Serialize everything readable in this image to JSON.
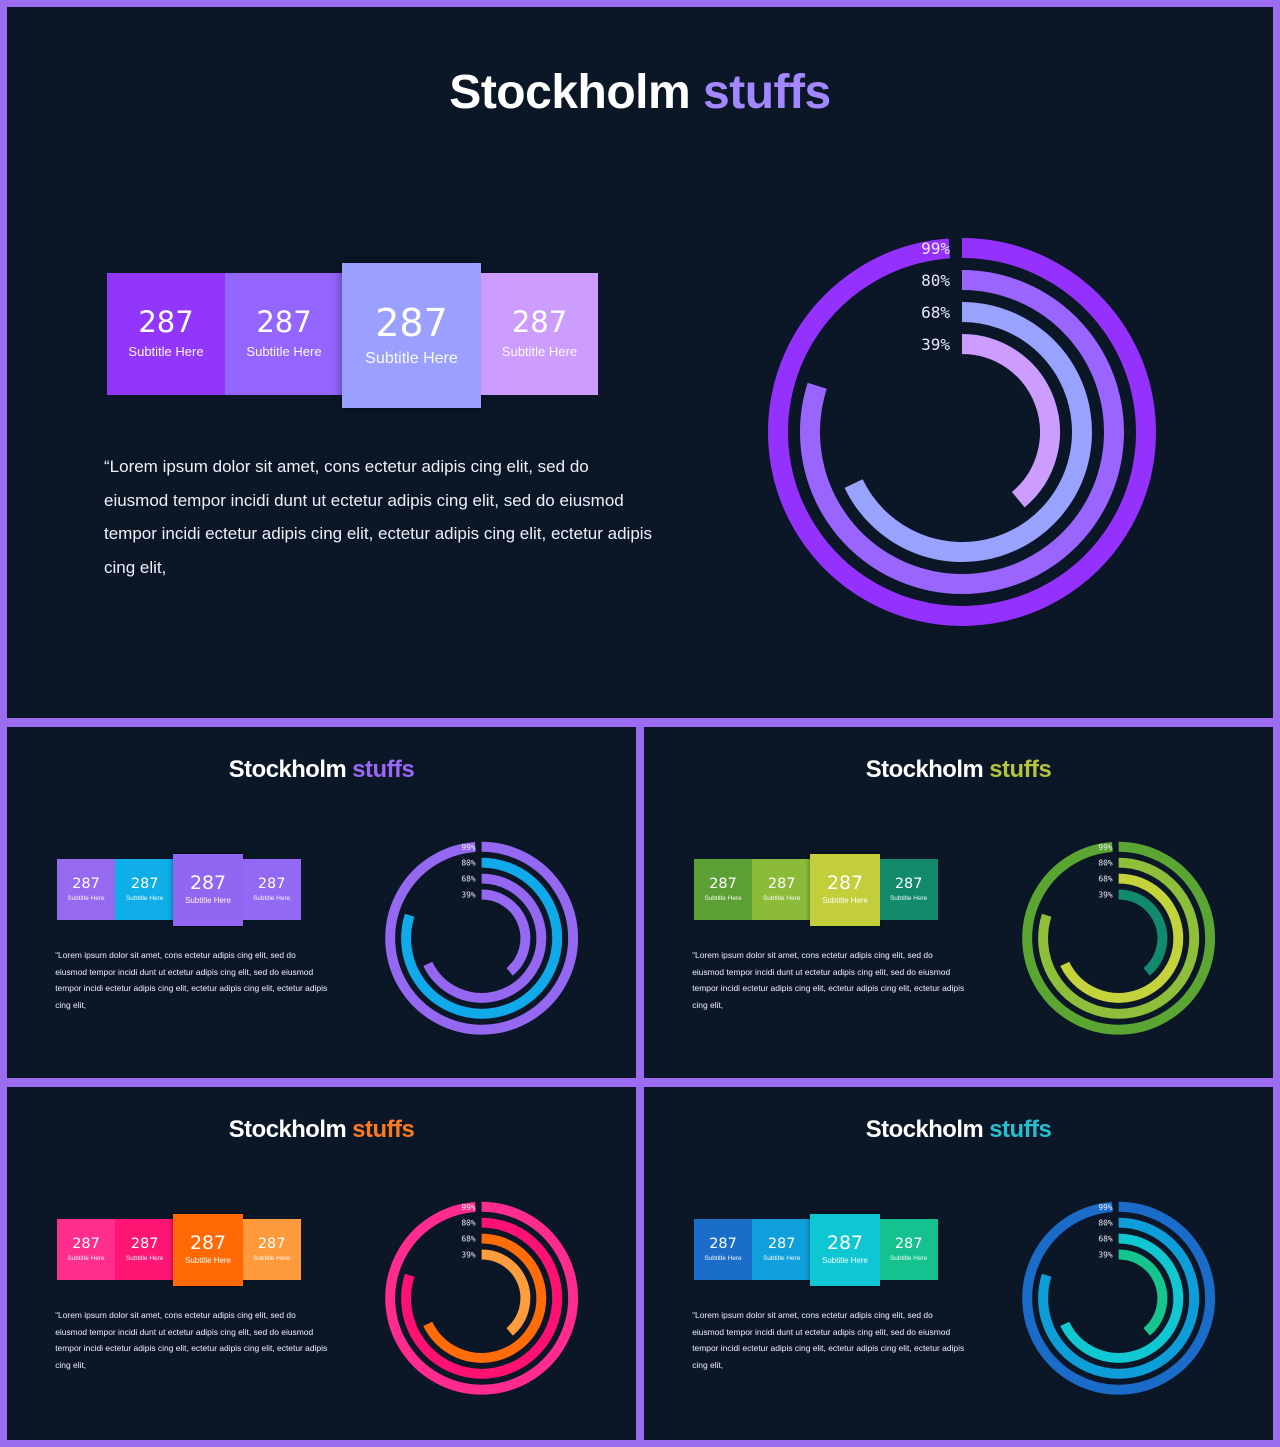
{
  "title": {
    "main": "Stockholm",
    "accent": "stuffs"
  },
  "stats": [
    {
      "value": "287",
      "subtitle": "Subtitle Here"
    },
    {
      "value": "287",
      "subtitle": "Subtitle Here"
    },
    {
      "value": "287",
      "subtitle": "Subtitle Here"
    },
    {
      "value": "287",
      "subtitle": "Subtitle Here"
    }
  ],
  "body_text": "“Lorem ipsum dolor sit amet, cons ectetur adipis cing elit, sed do eiusmod tempor incidi dunt ut ectetur adipis cing elit, sed do eiusmod tempor incidi ectetur adipis cing elit,  ectetur adipis cing elit,  ectetur adipis cing elit,",
  "chart_data": {
    "type": "radial-bar",
    "labels": [
      "99%",
      "80%",
      "68%",
      "39%"
    ],
    "values": [
      99,
      80,
      68,
      39
    ]
  },
  "themes": [
    {
      "name": "purple",
      "accent": "#a287ff",
      "boxes": [
        "#9336fb",
        "#9566ff",
        "#9b9ffd",
        "#cc9cff"
      ],
      "rings": [
        "#9431fd",
        "#9965fd",
        "#99a3fe",
        "#cc9dfe"
      ]
    },
    {
      "name": "purple-blue",
      "accent": "#9a68f5",
      "boxes": [
        "#9569f0",
        "#0faee8",
        "#9166f0",
        "#9269f2"
      ],
      "rings": [
        "#9568f1",
        "#10aaea",
        "#9566ef",
        "#9569f1"
      ]
    },
    {
      "name": "green",
      "accent": "#b3c43c",
      "boxes": [
        "#5c9f34",
        "#8cbb3a",
        "#c3cf3a",
        "#11896a"
      ],
      "rings": [
        "#5ba533",
        "#8fbe3b",
        "#c4d33c",
        "#118a6d"
      ]
    },
    {
      "name": "pink-orange",
      "accent": "#ff7a1f",
      "boxes": [
        "#ff2d8c",
        "#ff1674",
        "#ff6a07",
        "#ff9a3c"
      ],
      "rings": [
        "#ff2b8e",
        "#ff1172",
        "#ff6c08",
        "#ff9d3e"
      ]
    },
    {
      "name": "blue-teal",
      "accent": "#24c0d2",
      "boxes": [
        "#1a6ec9",
        "#0f9fda",
        "#0ec7d3",
        "#15c28f"
      ],
      "rings": [
        "#1a6cc8",
        "#0d9ed9",
        "#10c7d2",
        "#16c48d"
      ]
    }
  ]
}
